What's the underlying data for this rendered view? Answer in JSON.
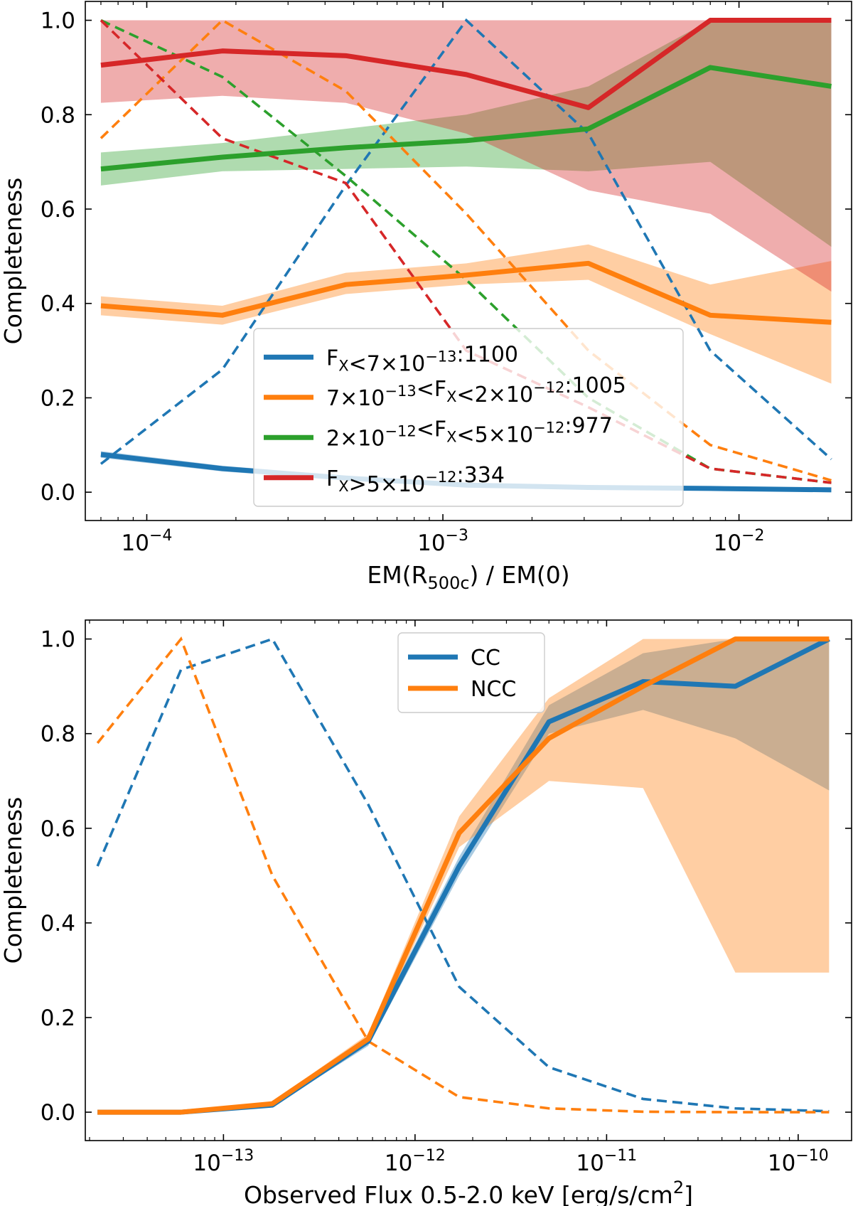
{
  "chart_data": [
    {
      "type": "line",
      "xscale": "log",
      "xlabel": "EM(R",
      "xlabel_sub": "500c",
      "xlabel_tail": ") / EM(0)",
      "ylabel": "Completeness",
      "xlim": [
        6.2e-05,
        0.024
      ],
      "ylim": [
        -0.06,
        1.04
      ],
      "x": [
        7e-05,
        0.00018,
        0.00047,
        0.0012,
        0.0031,
        0.008,
        0.0205
      ],
      "yticks": [
        "0.0",
        "0.2",
        "0.4",
        "0.6",
        "0.8",
        "1.0"
      ],
      "xticks": [
        {
          "base": "10",
          "exp": "−4",
          "value": 0.0001
        },
        {
          "base": "10",
          "exp": "−3",
          "value": 0.001
        },
        {
          "base": "10",
          "exp": "−2",
          "value": 0.01
        }
      ],
      "legend_position": "lower-center",
      "series": [
        {
          "name": "F_X<7×10^-13:1100",
          "color": "#1f77b4",
          "solid": [
            0.08,
            0.05,
            0.03,
            0.015,
            0.01,
            0.008,
            0.005
          ],
          "band_low": [
            0.073,
            0.044,
            0.025,
            0.012,
            0.008,
            0.006,
            0.004
          ],
          "band_high": [
            0.087,
            0.056,
            0.035,
            0.018,
            0.012,
            0.01,
            0.006
          ],
          "dashed": [
            0.06,
            0.26,
            0.65,
            1.0,
            0.76,
            0.3,
            0.07
          ],
          "legend": [
            {
              "t": "F"
            },
            {
              "t": "X",
              "sub": true
            },
            {
              "t": "<7×10"
            },
            {
              "t": "−13",
              "sup": true
            },
            {
              "t": ":1100"
            }
          ]
        },
        {
          "name": "7×10^-13<F_X<2×10^-12:1005",
          "color": "#ff7f0e",
          "solid": [
            0.395,
            0.375,
            0.44,
            0.46,
            0.485,
            0.375,
            0.36
          ],
          "band_low": [
            0.375,
            0.355,
            0.42,
            0.44,
            0.45,
            0.335,
            0.23
          ],
          "band_high": [
            0.415,
            0.395,
            0.465,
            0.485,
            0.525,
            0.44,
            0.49
          ],
          "dashed": [
            0.75,
            1.0,
            0.85,
            0.59,
            0.3,
            0.1,
            0.025
          ],
          "legend": [
            {
              "t": "7×10"
            },
            {
              "t": "−13",
              "sup": true
            },
            {
              "t": "<F"
            },
            {
              "t": "X",
              "sub": true
            },
            {
              "t": "<2×10"
            },
            {
              "t": "−12",
              "sup": true
            },
            {
              "t": ":1005"
            }
          ]
        },
        {
          "name": "2×10^-12<F_X<5×10^-12:977",
          "color": "#2ca02c",
          "solid": [
            0.685,
            0.71,
            0.73,
            0.745,
            0.77,
            0.9,
            0.86
          ],
          "band_low": [
            0.65,
            0.68,
            0.685,
            0.69,
            0.68,
            0.7,
            0.52
          ],
          "band_high": [
            0.72,
            0.74,
            0.77,
            0.8,
            0.86,
            1.0,
            1.0
          ],
          "dashed": [
            1.0,
            0.88,
            0.67,
            0.45,
            0.2,
            0.05,
            0.02
          ],
          "legend": [
            {
              "t": "2×10"
            },
            {
              "t": "−12",
              "sup": true
            },
            {
              "t": "<F"
            },
            {
              "t": "X",
              "sub": true
            },
            {
              "t": "<5×10"
            },
            {
              "t": "−12",
              "sup": true
            },
            {
              "t": ":977"
            }
          ]
        },
        {
          "name": "F_X>5×10^-12:334",
          "color": "#d62728",
          "solid": [
            0.905,
            0.935,
            0.925,
            0.885,
            0.815,
            1.0,
            1.0
          ],
          "band_low": [
            0.825,
            0.84,
            0.825,
            0.76,
            0.64,
            0.59,
            0.425
          ],
          "band_high": [
            1.0,
            1.0,
            1.0,
            1.0,
            1.0,
            1.0,
            1.0
          ],
          "dashed": [
            1.0,
            0.75,
            0.655,
            0.3,
            0.18,
            0.05,
            0.02
          ],
          "legend": [
            {
              "t": "F"
            },
            {
              "t": "X",
              "sub": true
            },
            {
              "t": ">5×10"
            },
            {
              "t": "−12",
              "sup": true
            },
            {
              "t": ":334"
            }
          ]
        }
      ]
    },
    {
      "type": "line",
      "xscale": "log",
      "xlabel": "Observed Flux 0.5-2.0 keV [erg/s/cm",
      "xlabel_sup": "2",
      "xlabel_tail": "]",
      "ylabel": "Completeness",
      "xlim": [
        1.9e-14,
        1.9e-10
      ],
      "ylim": [
        -0.06,
        1.04
      ],
      "x": [
        2.2e-14,
        6e-14,
        1.8e-13,
        5.7e-13,
        1.7e-12,
        5e-12,
        1.55e-11,
        4.7e-11,
        1.45e-10
      ],
      "yticks": [
        "0.0",
        "0.2",
        "0.4",
        "0.6",
        "0.8",
        "1.0"
      ],
      "xticks": [
        {
          "base": "10",
          "exp": "−13",
          "value": 1e-13
        },
        {
          "base": "10",
          "exp": "−12",
          "value": 1e-12
        },
        {
          "base": "10",
          "exp": "−11",
          "value": 1e-11
        },
        {
          "base": "10",
          "exp": "−10",
          "value": 1e-10
        }
      ],
      "legend_position": "upper-center",
      "series": [
        {
          "name": "CC",
          "color": "#1f77b4",
          "solid": [
            0.0,
            0.0,
            0.015,
            0.15,
            0.52,
            0.825,
            0.91,
            0.9,
            1.0
          ],
          "band_low": [
            0.0,
            0.0,
            0.012,
            0.14,
            0.5,
            0.8,
            0.85,
            0.79,
            0.68
          ],
          "band_high": [
            0.0,
            0.0,
            0.018,
            0.16,
            0.54,
            0.86,
            0.97,
            1.0,
            1.0
          ],
          "dashed": [
            0.52,
            0.935,
            1.0,
            0.65,
            0.265,
            0.095,
            0.028,
            0.008,
            0.002
          ],
          "legend": [
            {
              "t": "CC"
            }
          ]
        },
        {
          "name": "NCC",
          "color": "#ff7f0e",
          "solid": [
            0.0,
            0.0,
            0.018,
            0.155,
            0.59,
            0.79,
            0.9,
            1.0,
            1.0
          ],
          "band_low": [
            0.0,
            0.0,
            0.014,
            0.145,
            0.56,
            0.7,
            0.685,
            0.295,
            0.295
          ],
          "band_high": [
            0.0,
            0.0,
            0.022,
            0.165,
            0.625,
            0.875,
            1.0,
            1.0,
            1.0
          ],
          "dashed": [
            0.78,
            1.0,
            0.5,
            0.15,
            0.032,
            0.008,
            0.001,
            0.0,
            0.0
          ],
          "legend": [
            {
              "t": "NCC"
            }
          ]
        }
      ]
    }
  ]
}
